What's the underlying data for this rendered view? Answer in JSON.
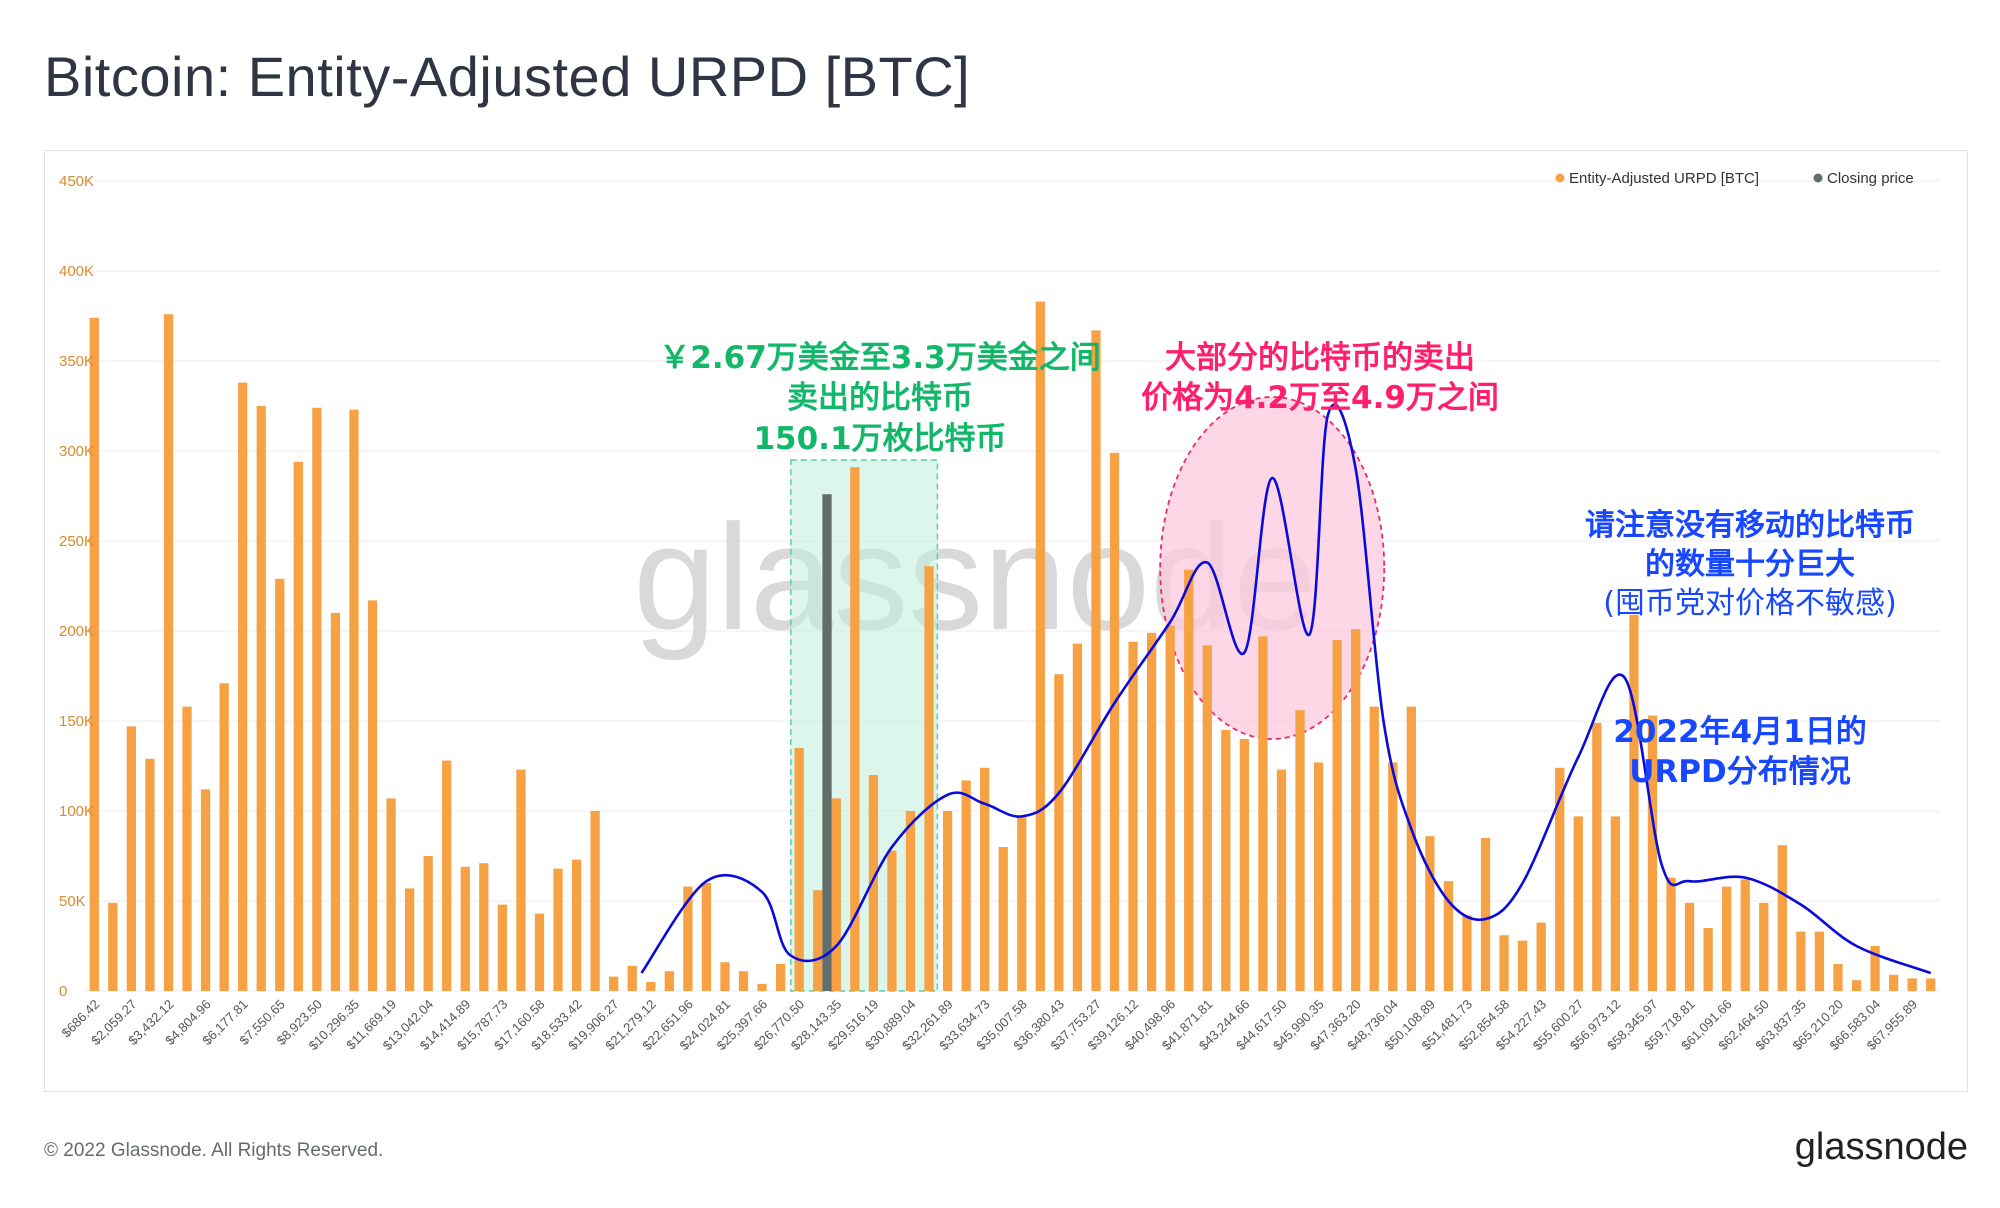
{
  "title": "Bitcoin: Entity-Adjusted URPD [BTC]",
  "footer": {
    "copyright": "© 2022 Glassnode. All Rights Reserved.",
    "logo": "glassnode"
  },
  "annotations": {
    "green": [
      "￥2.67万美金至3.3万美金之间",
      "卖出的比特币",
      "150.1万枚比特币"
    ],
    "red": [
      "大部分的比特币的卖出",
      "价格为4.2万至4.9万之间"
    ],
    "blue_note": [
      "请注意没有移动的比特币",
      "的数量十分巨大",
      "(囤币党对价格不敏感)"
    ],
    "blue_date": [
      "2022年4月1日的",
      "URPD分布情况"
    ]
  },
  "colors": {
    "bar": "#f7a145",
    "closing": "#636e6a",
    "curve": "#0a0adc",
    "green_box": "#bfeedd",
    "green_border": "#5ccf9b",
    "pink_ellipse": "#fcc9dc",
    "pink_border": "#ea2c6e",
    "tick_y": "#d98a2e",
    "tick_x": "#555555",
    "watermark": "#d9d9d9"
  },
  "chart_data": {
    "type": "bar",
    "watermark": "glassnode",
    "legend": [
      {
        "name": "Entity-Adjusted URPD [BTC]",
        "color": "#f7a145"
      },
      {
        "name": "Closing price",
        "color": "#636e6a"
      }
    ],
    "legend_position": "top-right",
    "ylim": [
      0,
      450000
    ],
    "y_ticks": [
      0,
      50000,
      100000,
      150000,
      200000,
      250000,
      300000,
      350000,
      400000,
      450000
    ],
    "y_tick_labels": [
      "0",
      "50K",
      "100K",
      "150K",
      "200K",
      "250K",
      "300K",
      "350K",
      "400K",
      "450K"
    ],
    "x_tick_labels": [
      "$686.42",
      "$2,059.27",
      "$3,432.12",
      "$4,804.96",
      "$6,177.81",
      "$7,550.65",
      "$8,923.50",
      "$10,296.35",
      "$11,669.19",
      "$13,042.04",
      "$14,414.89",
      "$15,787.73",
      "$17,160.58",
      "$18,533.42",
      "$19,906.27",
      "$21,279.12",
      "$22,651.96",
      "$24,024.81",
      "$25,397.66",
      "$26,770.50",
      "$28,143.35",
      "$29,516.19",
      "$30,889.04",
      "$32,261.89",
      "$33,634.73",
      "$35,007.58",
      "$36,380.43",
      "$37,753.27",
      "$39,126.12",
      "$40,498.96",
      "$41,871.81",
      "$43,244.66",
      "$44,617.50",
      "$45,990.35",
      "$47,363.20",
      "$48,736.04",
      "$50,108.89",
      "$51,481.73",
      "$52,854.58",
      "$54,227.43",
      "$55,600.27",
      "$56,973.12",
      "$58,345.97",
      "$59,718.81",
      "$61,091.66",
      "$62,464.50",
      "$63,837.35",
      "$65,210.20",
      "$66,583.04",
      "$67,955.89"
    ],
    "series": [
      {
        "name": "Entity-Adjusted URPD [BTC]",
        "values": [
          374000,
          49000,
          147000,
          129000,
          376000,
          158000,
          112000,
          171000,
          338000,
          325000,
          229000,
          294000,
          324000,
          210000,
          323000,
          217000,
          107000,
          57000,
          75000,
          128000,
          69000,
          71000,
          48000,
          123000,
          43000,
          68000,
          73000,
          100000,
          8000,
          14000,
          5000,
          11000,
          58000,
          60000,
          16000,
          11000,
          4000,
          15000,
          135000,
          56000,
          107000,
          291000,
          120000,
          78000,
          100000,
          236000,
          100000,
          117000,
          124000,
          80000,
          97000,
          383000,
          176000,
          193000,
          367000,
          299000,
          194000,
          199000,
          203000,
          234000,
          192000,
          145000,
          140000,
          197000,
          123000,
          156000,
          127000,
          195000,
          201000,
          158000,
          127000,
          158000,
          86000,
          61000,
          42000,
          85000,
          31000,
          28000,
          38000,
          124000,
          97000,
          149000,
          97000,
          209000,
          153000,
          63000,
          49000,
          35000,
          58000,
          62000,
          49000,
          81000,
          33000,
          33000,
          15000,
          6000,
          25000,
          9000,
          7000,
          7000
        ]
      },
      {
        "name": "Closing price",
        "bar_index": 39,
        "value": 276000
      }
    ]
  }
}
